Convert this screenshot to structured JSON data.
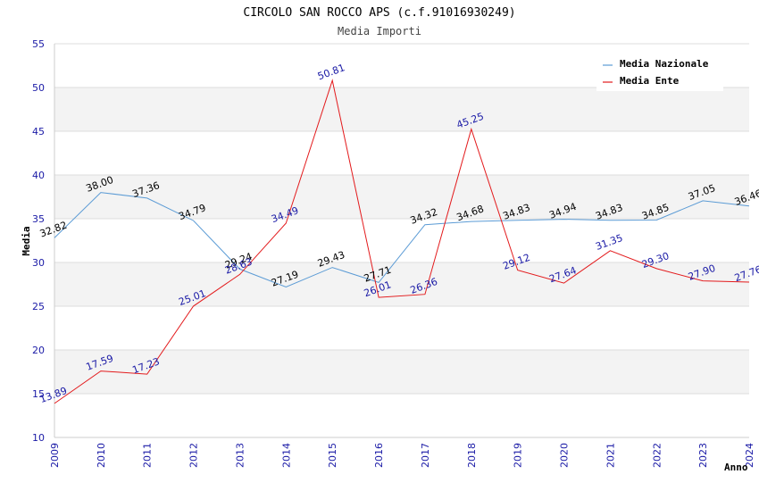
{
  "chart_data": {
    "type": "line",
    "title": "CIRCOLO SAN ROCCO APS (c.f.91016930249)",
    "subtitle": "Media Importi",
    "ylabel": "Media",
    "xlabel": "Anno",
    "ylim": [
      10,
      55
    ],
    "yticks": [
      10,
      15,
      20,
      25,
      30,
      35,
      40,
      45,
      50,
      55
    ],
    "x": [
      "2009",
      "2010",
      "2011",
      "2012",
      "2013",
      "2014",
      "2015",
      "2016",
      "2017",
      "2018",
      "2019",
      "2020",
      "2021",
      "2022",
      "2023",
      "2024"
    ],
    "series": [
      {
        "name": "Media Nazionale",
        "color": "#5b9bd5",
        "values": [
          32.82,
          38.0,
          37.36,
          34.79,
          29.24,
          27.19,
          29.43,
          27.71,
          34.32,
          34.68,
          34.83,
          34.94,
          34.83,
          34.85,
          37.05,
          36.46
        ],
        "labels": [
          "32.82",
          "38.00",
          "37.36",
          "34.79",
          "29.24",
          "27.19",
          "29.43",
          "27.71",
          "34.32",
          "34.68",
          "34.83",
          "34.94",
          "34.83",
          "34.85",
          "37.05",
          "36.46"
        ]
      },
      {
        "name": "Media Ente",
        "color": "#e31a1c",
        "values": [
          13.89,
          17.59,
          17.23,
          25.01,
          28.63,
          34.49,
          50.81,
          26.01,
          26.36,
          45.25,
          29.12,
          27.64,
          31.35,
          29.3,
          27.9,
          27.76
        ],
        "labels": [
          "13.89",
          "17.59",
          "17.23",
          "25.01",
          "28.63",
          "34.49",
          "50.81",
          "26.01",
          "26.36",
          "45.25",
          "29.12",
          "27.64",
          "31.35",
          "29.30",
          "27.90",
          "27.76"
        ]
      }
    ],
    "legend_position": "top-right",
    "grid": true
  }
}
